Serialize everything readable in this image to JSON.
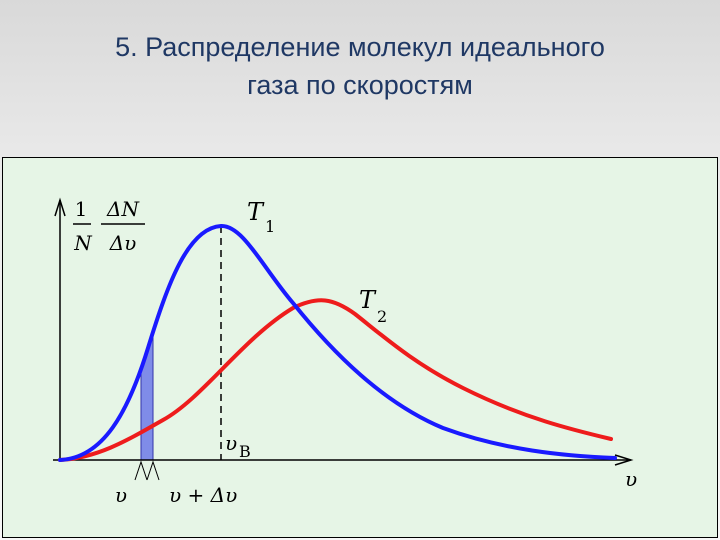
{
  "slide": {
    "title_line1": "5. Распределение молекул идеального",
    "title_line2": "газа по скоростям"
  },
  "diagram": {
    "y_axis_label_numerator_left": "1",
    "y_axis_label_denominator_left": "N",
    "y_axis_label_numerator_right": "ΔN",
    "y_axis_label_denominator_right": "Δυ",
    "x_axis_label": "υ",
    "curve1_label_main": "T",
    "curve1_label_sub": "1",
    "curve2_label_main": "T",
    "curve2_label_sub": "2",
    "peak_label_main": "υ",
    "peak_label_sub": "B",
    "strip_left_label": "υ",
    "strip_right_label": "υ + Δυ",
    "colors": {
      "curve1": "#1a1aff",
      "curve2": "#ee1c1c",
      "strip": "#7f8ce8",
      "background": "#e6f5e6"
    }
  }
}
